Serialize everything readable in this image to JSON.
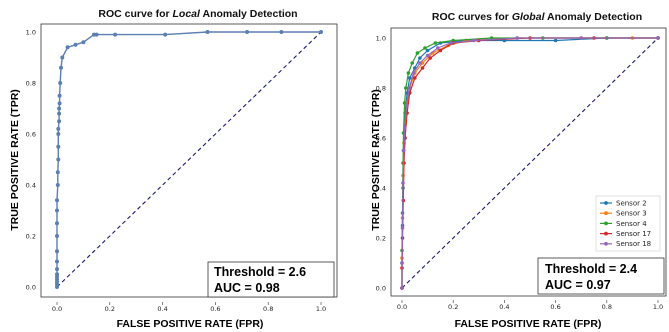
{
  "chart_data": [
    {
      "type": "line",
      "title_pre": "ROC curve for ",
      "title_em": "Local",
      "title_post": " Anomaly Detection",
      "xlabel": "FALSE POSITIVE RATE (FPR)",
      "ylabel": "TRUE POSITIVE RATE (TPR)",
      "xlim": [
        0,
        1
      ],
      "ylim": [
        0,
        1
      ],
      "xticks": [
        "0.0",
        "0.2",
        "0.4",
        "0.6",
        "0.8",
        "1.0"
      ],
      "yticks": [
        "0.0",
        "0.2",
        "0.4",
        "0.6",
        "0.8",
        "1.0"
      ],
      "grid": false,
      "box_lines": [
        "Threshold = 2.6",
        "AUC = 0.98"
      ],
      "diagonal_color": "#1a1a6e",
      "series": [
        {
          "color": "#5b7fb0",
          "x": [
            0.0,
            0.0,
            0.0,
            0.0,
            0.0,
            0.0,
            0.0,
            0.0,
            0.0,
            0.0,
            0.0,
            0.0,
            0.0,
            0.003,
            0.003,
            0.005,
            0.005,
            0.005,
            0.005,
            0.008,
            0.008,
            0.008,
            0.01,
            0.01,
            0.012,
            0.015,
            0.02,
            0.04,
            0.07,
            0.1,
            0.14,
            0.15,
            0.22,
            0.41,
            0.57,
            0.72,
            0.85,
            1.0
          ],
          "y": [
            0.0,
            0.01,
            0.02,
            0.03,
            0.04,
            0.05,
            0.07,
            0.1,
            0.14,
            0.2,
            0.25,
            0.3,
            0.34,
            0.4,
            0.45,
            0.5,
            0.55,
            0.6,
            0.62,
            0.65,
            0.68,
            0.7,
            0.72,
            0.75,
            0.8,
            0.86,
            0.9,
            0.94,
            0.95,
            0.96,
            0.99,
            0.99,
            0.99,
            0.99,
            1.0,
            1.0,
            1.0,
            1.0
          ]
        }
      ]
    },
    {
      "type": "line",
      "title_pre": "ROC curves for ",
      "title_em": "Global",
      "title_post": " Anomaly Detection",
      "xlabel": "FALSE POSITIVE RATE (FPR)",
      "ylabel": "TRUE POSITIVE RATE (TPR)",
      "xlim": [
        0,
        1
      ],
      "ylim": [
        0,
        1
      ],
      "xticks": [
        "0.0",
        "0.2",
        "0.4",
        "0.6",
        "0.8",
        "1.0"
      ],
      "yticks": [
        "0.0",
        "0.2",
        "0.4",
        "0.6",
        "0.8",
        "1.0"
      ],
      "grid": false,
      "legend_position": "center-right",
      "box_lines": [
        "Threshold = 2.4",
        "AUC = 0.97"
      ],
      "diagonal_color": "#1a1a6e",
      "series": [
        {
          "name": "Sensor 2",
          "color": "#1f77b4",
          "x": [
            0.0,
            0.0,
            0.002,
            0.004,
            0.006,
            0.008,
            0.012,
            0.02,
            0.03,
            0.05,
            0.07,
            0.1,
            0.15,
            0.25,
            0.4,
            0.6,
            0.8,
            1.0
          ],
          "y": [
            0.0,
            0.1,
            0.25,
            0.4,
            0.55,
            0.62,
            0.7,
            0.78,
            0.84,
            0.88,
            0.92,
            0.95,
            0.98,
            0.99,
            0.99,
            0.99,
            1.0,
            1.0
          ]
        },
        {
          "name": "Sensor 3",
          "color": "#ff7f0e",
          "x": [
            0.0,
            0.0,
            0.002,
            0.004,
            0.008,
            0.012,
            0.02,
            0.03,
            0.05,
            0.08,
            0.12,
            0.18,
            0.25,
            0.45,
            0.7,
            0.9,
            1.0
          ],
          "y": [
            0.0,
            0.12,
            0.28,
            0.45,
            0.58,
            0.66,
            0.74,
            0.8,
            0.86,
            0.9,
            0.94,
            0.97,
            0.99,
            1.0,
            1.0,
            1.0,
            1.0
          ]
        },
        {
          "name": "Sensor 4",
          "color": "#2ca02c",
          "x": [
            0.0,
            0.0,
            0.002,
            0.004,
            0.006,
            0.01,
            0.015,
            0.025,
            0.04,
            0.06,
            0.09,
            0.13,
            0.2,
            0.35,
            0.55,
            0.8,
            1.0
          ],
          "y": [
            0.0,
            0.15,
            0.3,
            0.5,
            0.62,
            0.74,
            0.8,
            0.86,
            0.9,
            0.94,
            0.96,
            0.98,
            0.99,
            1.0,
            1.0,
            1.0,
            1.0
          ]
        },
        {
          "name": "Sensor 17",
          "color": "#d62728",
          "x": [
            0.0,
            0.0,
            0.002,
            0.005,
            0.008,
            0.012,
            0.02,
            0.03,
            0.05,
            0.08,
            0.11,
            0.15,
            0.2,
            0.3,
            0.5,
            0.75,
            1.0
          ],
          "y": [
            0.0,
            0.08,
            0.2,
            0.35,
            0.5,
            0.6,
            0.7,
            0.78,
            0.84,
            0.88,
            0.92,
            0.95,
            0.98,
            0.99,
            1.0,
            1.0,
            1.0
          ]
        },
        {
          "name": "Sensor 18",
          "color": "#9467bd",
          "x": [
            0.0,
            0.0,
            0.002,
            0.004,
            0.007,
            0.011,
            0.018,
            0.028,
            0.045,
            0.07,
            0.1,
            0.14,
            0.19,
            0.28,
            0.45,
            0.7,
            1.0
          ],
          "y": [
            0.0,
            0.1,
            0.24,
            0.42,
            0.55,
            0.64,
            0.73,
            0.8,
            0.86,
            0.9,
            0.93,
            0.96,
            0.98,
            0.99,
            1.0,
            1.0,
            1.0
          ]
        }
      ]
    }
  ]
}
